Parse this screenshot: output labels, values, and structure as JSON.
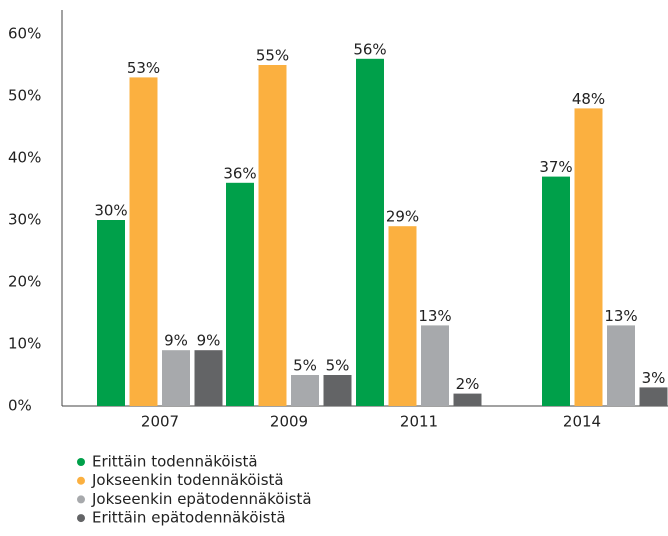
{
  "chart_data": {
    "type": "bar",
    "categories": [
      "2007",
      "2009",
      "2011",
      "2014"
    ],
    "series": [
      {
        "name": "Erittäin todennäköistä",
        "color": "#00a04a",
        "values": [
          30,
          36,
          56,
          37
        ],
        "value_labels": [
          "30%",
          "36%",
          "56%",
          "37%"
        ]
      },
      {
        "name": "Jokseenkin todennäköistä",
        "color": "#fbb040",
        "values": [
          53,
          55,
          29,
          48
        ],
        "value_labels": [
          "53%",
          "55%",
          "29%",
          "48%"
        ]
      },
      {
        "name": "Jokseenkin epätodennäköistä",
        "color": "#a7a9ac",
        "values": [
          9,
          5,
          13,
          13
        ],
        "value_labels": [
          "9%",
          "5%",
          "13%",
          "13%"
        ]
      },
      {
        "name": "Erittäin epätodennäköistä",
        "color": "#636466",
        "values": [
          9,
          5,
          2,
          3
        ],
        "value_labels": [
          "9%",
          "5%",
          "2%",
          "3%"
        ]
      }
    ],
    "ylim": [
      0,
      60
    ],
    "yticks": [
      {
        "value": 0,
        "label": "0%"
      },
      {
        "value": 10,
        "label": "10%"
      },
      {
        "value": 20,
        "label": "20%"
      },
      {
        "value": 30,
        "label": "30%"
      },
      {
        "value": 40,
        "label": "40%"
      },
      {
        "value": 50,
        "label": "50%"
      },
      {
        "value": 60,
        "label": "60%"
      }
    ],
    "grid": false,
    "legend": "bottom"
  }
}
